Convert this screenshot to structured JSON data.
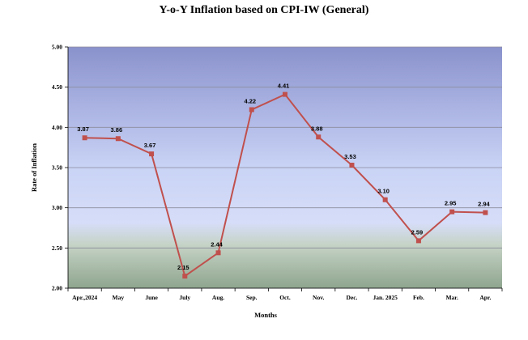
{
  "chart_data": {
    "type": "line",
    "title": "Y-o-Y Inflation based on CPI-IW (General)",
    "xlabel": "Months",
    "ylabel": "Rate of Inflation",
    "categories": [
      "Apr.,2024",
      "May",
      "June",
      "July",
      "Aug.",
      "Sep.",
      "Oct.",
      "Nov.",
      "Dec.",
      "Jan. 2025",
      "Feb.",
      "Mar.",
      "Apr."
    ],
    "values": [
      3.87,
      3.86,
      3.67,
      2.15,
      2.44,
      4.22,
      4.41,
      3.88,
      3.53,
      3.1,
      2.59,
      2.95,
      2.94
    ],
    "data_labels": [
      "3.87",
      "3.86",
      "3.67",
      "2.15",
      "2.44",
      "4.22",
      "4.41",
      "3.88",
      "3.53",
      "3.10",
      "2.59",
      "2.95",
      "2.94"
    ],
    "ylim": [
      2.0,
      5.0
    ],
    "yticks": [
      "2.00",
      "2.50",
      "3.00",
      "3.50",
      "4.00",
      "4.50",
      "5.00"
    ],
    "grid": true,
    "legend": "none",
    "line_color": "#c0504d",
    "marker_color": "#c0504d"
  }
}
